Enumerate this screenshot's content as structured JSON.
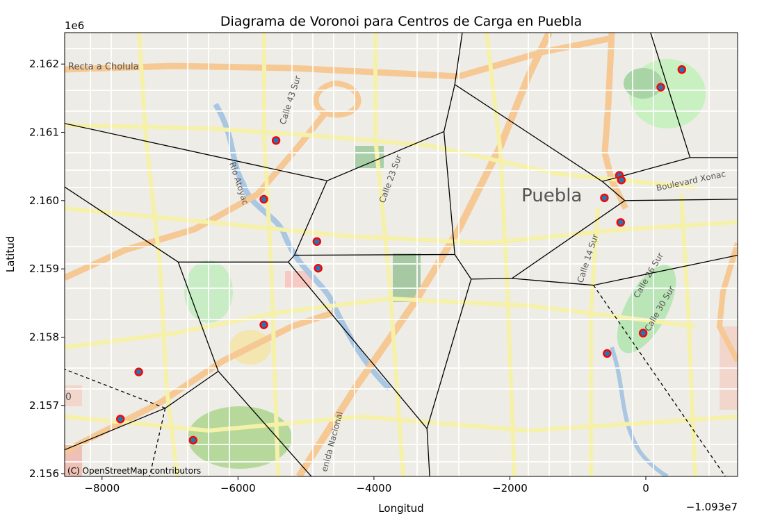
{
  "chart_data": {
    "type": "scatter",
    "title": "Diagrama de Voronoi para Centros de Carga en Puebla",
    "xlabel": "Longitud",
    "ylabel": "Latitud",
    "x_offset_label": "−1.093e7",
    "y_multiplier_label": "1e6",
    "xlim": [
      -10938550,
      -10928650
    ],
    "ylim": [
      2155960,
      2162460
    ],
    "x_ticks": [
      -10938000,
      -10936000,
      -10934000,
      -10932000,
      -10930000
    ],
    "x_tick_labels": [
      "−8000",
      "−6000",
      "−4000",
      "−2000",
      "0"
    ],
    "y_ticks": [
      2156000,
      2157000,
      2158000,
      2159000,
      2160000,
      2161000,
      2162000
    ],
    "y_tick_labels": [
      "2.156",
      "2.157",
      "2.158",
      "2.159",
      "2.160",
      "2.161",
      "2.162"
    ],
    "attribution": "(C) OpenStreetMap contributors",
    "basemap_labels": [
      "Recta a Cholula",
      "Calle 43 Sur",
      "Rio Atoyac",
      "Calle 23 Sur",
      "Puebla",
      "Boulevard Xonac",
      "Calle 14 Sur",
      "Calle 26 Sur",
      "Calle 30 Sur",
      "enida Nacional",
      "0"
    ],
    "points": [
      {
        "x": -10935440,
        "y": 2160880
      },
      {
        "x": -10935620,
        "y": 2160020
      },
      {
        "x": -10934840,
        "y": 2159400
      },
      {
        "x": -10934820,
        "y": 2159010
      },
      {
        "x": -10935620,
        "y": 2158180
      },
      {
        "x": -10937460,
        "y": 2157490
      },
      {
        "x": -10937730,
        "y": 2156800
      },
      {
        "x": -10936660,
        "y": 2156490
      },
      {
        "x": -10930610,
        "y": 2160040
      },
      {
        "x": -10930390,
        "y": 2160370
      },
      {
        "x": -10930360,
        "y": 2160300
      },
      {
        "x": -10930370,
        "y": 2159680
      },
      {
        "x": -10930570,
        "y": 2157760
      },
      {
        "x": -10930040,
        "y": 2158060
      },
      {
        "x": -10929780,
        "y": 2161660
      },
      {
        "x": -10929470,
        "y": 2161920
      }
    ],
    "voronoi_edges": [
      {
        "style": "solid",
        "pts": [
          [
            -10938550,
            2161130
          ],
          [
            -10934690,
            2160290
          ]
        ]
      },
      {
        "style": "solid",
        "pts": [
          [
            -10934690,
            2160290
          ],
          [
            -10932970,
            2161010
          ]
        ]
      },
      {
        "style": "solid",
        "pts": [
          [
            -10932970,
            2161010
          ],
          [
            -10932810,
            2161700
          ]
        ]
      },
      {
        "style": "solid",
        "pts": [
          [
            -10932810,
            2161700
          ],
          [
            -10932700,
            2162460
          ]
        ]
      },
      {
        "style": "solid",
        "pts": [
          [
            -10932810,
            2161700
          ],
          [
            -10930640,
            2160280
          ]
        ]
      },
      {
        "style": "solid",
        "pts": [
          [
            -10930640,
            2160280
          ],
          [
            -10929350,
            2160630
          ]
        ]
      },
      {
        "style": "solid",
        "pts": [
          [
            -10929350,
            2160630
          ],
          [
            -10928650,
            2160630
          ]
        ]
      },
      {
        "style": "solid",
        "pts": [
          [
            -10929350,
            2160630
          ],
          [
            -10929930,
            2162460
          ]
        ]
      },
      {
        "style": "solid",
        "pts": [
          [
            -10930640,
            2160280
          ],
          [
            -10930310,
            2160000
          ]
        ]
      },
      {
        "style": "solid",
        "pts": [
          [
            -10930310,
            2160000
          ],
          [
            -10928650,
            2160020
          ]
        ]
      },
      {
        "style": "solid",
        "pts": [
          [
            -10930310,
            2160000
          ],
          [
            -10931970,
            2158860
          ]
        ]
      },
      {
        "style": "solid",
        "pts": [
          [
            -10931970,
            2158860
          ],
          [
            -10932570,
            2158850
          ]
        ]
      },
      {
        "style": "solid",
        "pts": [
          [
            -10931970,
            2158860
          ],
          [
            -10930770,
            2158760
          ]
        ]
      },
      {
        "style": "solid",
        "pts": [
          [
            -10930770,
            2158760
          ],
          [
            -10928650,
            2159200
          ]
        ]
      },
      {
        "style": "solid",
        "pts": [
          [
            -10932570,
            2158850
          ],
          [
            -10932810,
            2159210
          ]
        ]
      },
      {
        "style": "solid",
        "pts": [
          [
            -10932810,
            2159210
          ],
          [
            -10932970,
            2161010
          ]
        ]
      },
      {
        "style": "solid",
        "pts": [
          [
            -10932810,
            2159210
          ],
          [
            -10935170,
            2159200
          ]
        ]
      },
      {
        "style": "solid",
        "pts": [
          [
            -10935170,
            2159200
          ],
          [
            -10934690,
            2160290
          ]
        ]
      },
      {
        "style": "solid",
        "pts": [
          [
            -10935170,
            2159200
          ],
          [
            -10935260,
            2159100
          ]
        ]
      },
      {
        "style": "solid",
        "pts": [
          [
            -10935260,
            2159100
          ],
          [
            -10936880,
            2159100
          ]
        ]
      },
      {
        "style": "solid",
        "pts": [
          [
            -10938550,
            2160200
          ],
          [
            -10936880,
            2159100
          ]
        ]
      },
      {
        "style": "solid",
        "pts": [
          [
            -10935260,
            2159100
          ],
          [
            -10933220,
            2156660
          ]
        ]
      },
      {
        "style": "solid",
        "pts": [
          [
            -10933220,
            2156660
          ],
          [
            -10932570,
            2158850
          ]
        ]
      },
      {
        "style": "solid",
        "pts": [
          [
            -10933220,
            2156660
          ],
          [
            -10933180,
            2155960
          ]
        ]
      },
      {
        "style": "solid",
        "pts": [
          [
            -10936880,
            2159100
          ],
          [
            -10936290,
            2157500
          ]
        ]
      },
      {
        "style": "solid",
        "pts": [
          [
            -10936290,
            2157500
          ],
          [
            -10934920,
            2155960
          ]
        ]
      },
      {
        "style": "solid",
        "pts": [
          [
            -10936290,
            2157500
          ],
          [
            -10937070,
            2156960
          ]
        ]
      },
      {
        "style": "solid",
        "pts": [
          [
            -10937070,
            2156960
          ],
          [
            -10938550,
            2156350
          ]
        ]
      },
      {
        "style": "dashed",
        "pts": [
          [
            -10937070,
            2156960
          ],
          [
            -10938550,
            2157530
          ]
        ]
      },
      {
        "style": "dashed",
        "pts": [
          [
            -10937070,
            2156960
          ],
          [
            -10937300,
            2155960
          ]
        ]
      },
      {
        "style": "dashed",
        "pts": [
          [
            -10930770,
            2158760
          ],
          [
            -10928830,
            2155960
          ]
        ]
      }
    ],
    "point_color": "#ff0000",
    "point_fill": "#1f77b4",
    "edge_color": "#000000"
  }
}
